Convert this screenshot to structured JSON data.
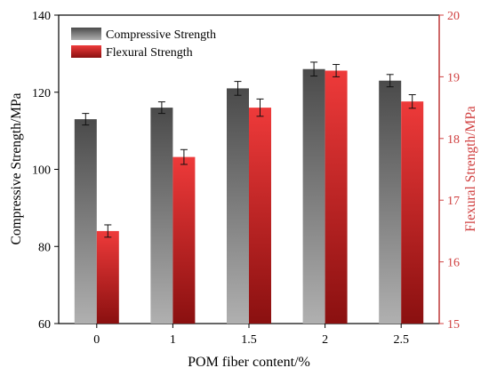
{
  "chart_data": {
    "type": "bar",
    "categories": [
      "0",
      "1",
      "1.5",
      "2",
      "2.5"
    ],
    "xlabel": "POM fiber content/%",
    "y_left_label": "Compressive Strength/MPa",
    "y_right_label": "Flexural Strength/MPa",
    "y_left_lim": [
      60,
      140
    ],
    "y_right_lim": [
      15,
      20
    ],
    "y_left_ticks": [
      "60",
      "80",
      "100",
      "120",
      "140"
    ],
    "y_right_ticks": [
      "15",
      "16",
      "17",
      "18",
      "19",
      "20"
    ],
    "grid": false,
    "legend_position": "top-left",
    "series": [
      {
        "name": "Compressive Strength",
        "axis": "left",
        "values": [
          113,
          116,
          121,
          126,
          123
        ],
        "errors": [
          1.5,
          1.5,
          1.8,
          1.8,
          1.6
        ],
        "color": "#555555"
      },
      {
        "name": "Flexural Strength",
        "axis": "right",
        "values": [
          16.5,
          17.7,
          18.5,
          19.1,
          18.6
        ],
        "errors": [
          0.1,
          0.12,
          0.14,
          0.1,
          0.11
        ],
        "color": "#cc2222"
      }
    ],
    "colors": {
      "left_axis": "#000000",
      "right_axis": "#d04040"
    }
  }
}
